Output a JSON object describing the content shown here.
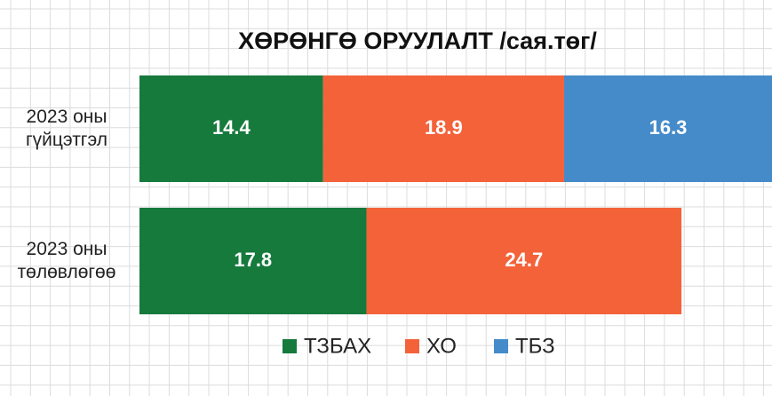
{
  "chart_data": {
    "type": "stacked_barh",
    "title": "ХӨРӨНГӨ ОРУУЛАЛТ /сая.төг/",
    "categories": [
      "2023 оны гүйцэтгэл",
      "2023 оны төлөвлөгөө"
    ],
    "series": [
      {
        "name": "ТЗБАХ",
        "color": "#157a3c",
        "values": [
          14.4,
          17.8
        ]
      },
      {
        "name": "ХО",
        "color": "#f4623a",
        "values": [
          18.9,
          24.7
        ]
      },
      {
        "name": "ТБЗ",
        "color": "#458bc9",
        "values": [
          16.3,
          null
        ]
      }
    ],
    "legend": "bottom"
  }
}
